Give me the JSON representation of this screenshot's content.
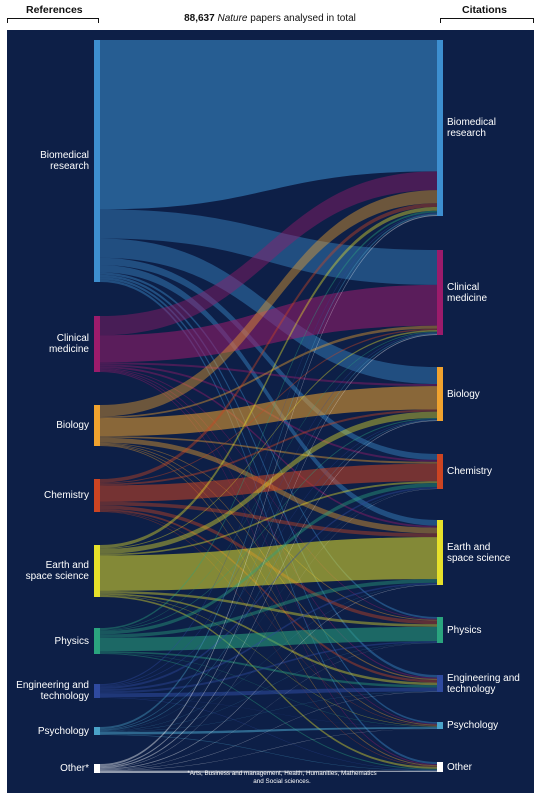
{
  "header": {
    "left_title": "References",
    "right_title": "Citations",
    "total_number": "88,637",
    "total_italic": "Nature",
    "total_rest": " papers analysed in total"
  },
  "footnote": "*Arts, Business and management, Health, Humanities, Mathematics and Social sciences.",
  "colors": {
    "background": "#0d1f47",
    "biomedical": "#3d8fd0",
    "clinical": "#9b1b6b",
    "biology": "#f0a22e",
    "chemistry": "#cc4422",
    "earth": "#e6e02a",
    "physics": "#2aa47e",
    "engineering": "#2f4aa0",
    "psychology": "#4aa3c9",
    "other": "#ffffff"
  },
  "left_nodes": [
    {
      "key": "biomedical",
      "label_lines": [
        "Biomedical",
        "research"
      ]
    },
    {
      "key": "clinical",
      "label_lines": [
        "Clinical",
        "medicine"
      ]
    },
    {
      "key": "biology",
      "label_lines": [
        "Biology"
      ]
    },
    {
      "key": "chemistry",
      "label_lines": [
        "Chemistry"
      ]
    },
    {
      "key": "earth",
      "label_lines": [
        "Earth and",
        "space science"
      ]
    },
    {
      "key": "physics",
      "label_lines": [
        "Physics"
      ]
    },
    {
      "key": "engineering",
      "label_lines": [
        "Engineering and",
        "technology"
      ]
    },
    {
      "key": "psychology",
      "label_lines": [
        "Psychology"
      ]
    },
    {
      "key": "other",
      "label_lines": [
        "Other*"
      ]
    }
  ],
  "right_nodes": [
    {
      "key": "biomedical",
      "label_lines": [
        "Biomedical",
        "research"
      ]
    },
    {
      "key": "clinical",
      "label_lines": [
        "Clinical",
        "medicine"
      ]
    },
    {
      "key": "biology",
      "label_lines": [
        "Biology"
      ]
    },
    {
      "key": "chemistry",
      "label_lines": [
        "Chemistry"
      ]
    },
    {
      "key": "earth",
      "label_lines": [
        "Earth and",
        "space science"
      ]
    },
    {
      "key": "physics",
      "label_lines": [
        "Physics"
      ]
    },
    {
      "key": "engineering",
      "label_lines": [
        "Engineering and",
        "technology"
      ]
    },
    {
      "key": "psychology",
      "label_lines": [
        "Psychology"
      ]
    },
    {
      "key": "other",
      "label_lines": [
        "Other"
      ]
    }
  ],
  "node_order": [
    "biomedical",
    "clinical",
    "biology",
    "chemistry",
    "earth",
    "physics",
    "engineering",
    "psychology",
    "other"
  ],
  "flows": [
    {
      "from": "biomedical",
      "to": "biomedical",
      "value": 70
    },
    {
      "from": "biomedical",
      "to": "clinical",
      "value": 12
    },
    {
      "from": "biomedical",
      "to": "biology",
      "value": 8
    },
    {
      "from": "biomedical",
      "to": "chemistry",
      "value": 3
    },
    {
      "from": "biomedical",
      "to": "earth",
      "value": 3
    },
    {
      "from": "biomedical",
      "to": "physics",
      "value": 1
    },
    {
      "from": "biomedical",
      "to": "engineering",
      "value": 1
    },
    {
      "from": "biomedical",
      "to": "psychology",
      "value": 1
    },
    {
      "from": "biomedical",
      "to": "other",
      "value": 1
    },
    {
      "from": "clinical",
      "to": "biomedical",
      "value": 10
    },
    {
      "from": "clinical",
      "to": "clinical",
      "value": 14
    },
    {
      "from": "clinical",
      "to": "biology",
      "value": 1
    },
    {
      "from": "clinical",
      "to": "chemistry",
      "value": 1
    },
    {
      "from": "clinical",
      "to": "earth",
      "value": 1
    },
    {
      "from": "clinical",
      "to": "physics",
      "value": 0.5
    },
    {
      "from": "clinical",
      "to": "engineering",
      "value": 0.5
    },
    {
      "from": "clinical",
      "to": "psychology",
      "value": 0.5
    },
    {
      "from": "clinical",
      "to": "other",
      "value": 0.5
    },
    {
      "from": "biology",
      "to": "biomedical",
      "value": 7
    },
    {
      "from": "biology",
      "to": "clinical",
      "value": 1
    },
    {
      "from": "biology",
      "to": "biology",
      "value": 11
    },
    {
      "from": "biology",
      "to": "chemistry",
      "value": 1
    },
    {
      "from": "biology",
      "to": "earth",
      "value": 3
    },
    {
      "from": "biology",
      "to": "physics",
      "value": 0.5
    },
    {
      "from": "biology",
      "to": "engineering",
      "value": 0.5
    },
    {
      "from": "biology",
      "to": "psychology",
      "value": 0.5
    },
    {
      "from": "biology",
      "to": "other",
      "value": 0.5
    },
    {
      "from": "chemistry",
      "to": "biomedical",
      "value": 2
    },
    {
      "from": "chemistry",
      "to": "clinical",
      "value": 0.5
    },
    {
      "from": "chemistry",
      "to": "biology",
      "value": 1
    },
    {
      "from": "chemistry",
      "to": "chemistry",
      "value": 9
    },
    {
      "from": "chemistry",
      "to": "earth",
      "value": 2
    },
    {
      "from": "chemistry",
      "to": "physics",
      "value": 2
    },
    {
      "from": "chemistry",
      "to": "engineering",
      "value": 1
    },
    {
      "from": "chemistry",
      "to": "psychology",
      "value": 0.3
    },
    {
      "from": "chemistry",
      "to": "other",
      "value": 0.3
    },
    {
      "from": "earth",
      "to": "biomedical",
      "value": 2
    },
    {
      "from": "earth",
      "to": "clinical",
      "value": 0.5
    },
    {
      "from": "earth",
      "to": "biology",
      "value": 3
    },
    {
      "from": "earth",
      "to": "chemistry",
      "value": 1
    },
    {
      "from": "earth",
      "to": "earth",
      "value": 22
    },
    {
      "from": "earth",
      "to": "physics",
      "value": 1.5
    },
    {
      "from": "earth",
      "to": "engineering",
      "value": 1
    },
    {
      "from": "earth",
      "to": "psychology",
      "value": 0.3
    },
    {
      "from": "earth",
      "to": "other",
      "value": 1
    },
    {
      "from": "physics",
      "to": "biomedical",
      "value": 1
    },
    {
      "from": "physics",
      "to": "clinical",
      "value": 0.3
    },
    {
      "from": "physics",
      "to": "biology",
      "value": 0.5
    },
    {
      "from": "physics",
      "to": "chemistry",
      "value": 2
    },
    {
      "from": "physics",
      "to": "earth",
      "value": 2
    },
    {
      "from": "physics",
      "to": "physics",
      "value": 8
    },
    {
      "from": "physics",
      "to": "engineering",
      "value": 1
    },
    {
      "from": "physics",
      "to": "psychology",
      "value": 0.2
    },
    {
      "from": "physics",
      "to": "other",
      "value": 0.5
    },
    {
      "from": "engineering",
      "to": "biomedical",
      "value": 0.5
    },
    {
      "from": "engineering",
      "to": "clinical",
      "value": 0.3
    },
    {
      "from": "engineering",
      "to": "biology",
      "value": 0.3
    },
    {
      "from": "engineering",
      "to": "chemistry",
      "value": 0.8
    },
    {
      "from": "engineering",
      "to": "earth",
      "value": 0.8
    },
    {
      "from": "engineering",
      "to": "physics",
      "value": 0.8
    },
    {
      "from": "engineering",
      "to": "engineering",
      "value": 1.5
    },
    {
      "from": "engineering",
      "to": "psychology",
      "value": 0.1
    },
    {
      "from": "engineering",
      "to": "other",
      "value": 0.2
    },
    {
      "from": "psychology",
      "to": "biomedical",
      "value": 0.8
    },
    {
      "from": "psychology",
      "to": "clinical",
      "value": 0.3
    },
    {
      "from": "psychology",
      "to": "biology",
      "value": 0.3
    },
    {
      "from": "psychology",
      "to": "chemistry",
      "value": 0.1
    },
    {
      "from": "psychology",
      "to": "earth",
      "value": 0.1
    },
    {
      "from": "psychology",
      "to": "physics",
      "value": 0.1
    },
    {
      "from": "psychology",
      "to": "engineering",
      "value": 0.1
    },
    {
      "from": "psychology",
      "to": "psychology",
      "value": 1
    },
    {
      "from": "psychology",
      "to": "other",
      "value": 0.2
    },
    {
      "from": "other",
      "to": "biomedical",
      "value": 0.5
    },
    {
      "from": "other",
      "to": "clinical",
      "value": 0.3
    },
    {
      "from": "other",
      "to": "biology",
      "value": 0.3
    },
    {
      "from": "other",
      "to": "chemistry",
      "value": 0.1
    },
    {
      "from": "other",
      "to": "earth",
      "value": 0.2
    },
    {
      "from": "other",
      "to": "physics",
      "value": 0.1
    },
    {
      "from": "other",
      "to": "engineering",
      "value": 0.1
    },
    {
      "from": "other",
      "to": "psychology",
      "value": 0.1
    },
    {
      "from": "other",
      "to": "other",
      "value": 0.6
    }
  ]
}
